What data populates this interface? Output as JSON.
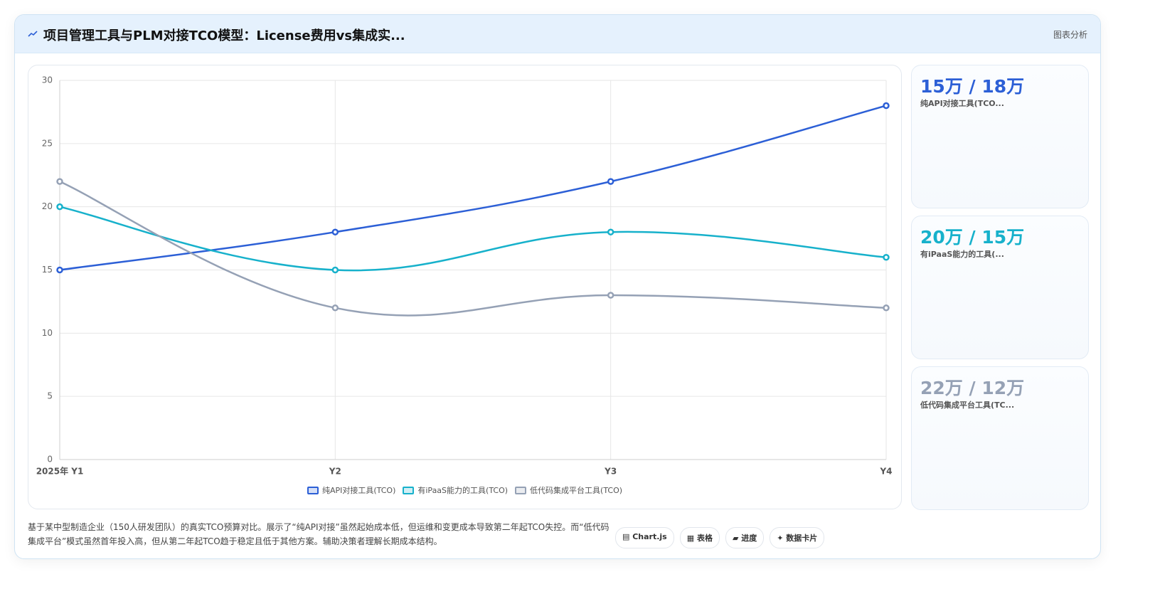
{
  "header": {
    "title": "项目管理工具与PLM对接TCO模型：License费用vs集成实...",
    "tag": "图表分析"
  },
  "chart_data": {
    "type": "line",
    "categories": [
      "2025年 Y1",
      "Y2",
      "Y3",
      "Y4"
    ],
    "series": [
      {
        "name": "纯API对接工具(TCO)",
        "color": "#2c5fd6",
        "values": [
          15,
          18,
          22,
          28
        ]
      },
      {
        "name": "有iPaaS能力的工具(TCO)",
        "color": "#17b1cb",
        "values": [
          20,
          15,
          18,
          16
        ]
      },
      {
        "name": "低代码集成平台工具(TCO)",
        "color": "#95a1b5",
        "values": [
          22,
          12,
          13,
          12
        ]
      }
    ],
    "ylim": [
      0,
      30
    ],
    "yticks": [
      0,
      5,
      10,
      15,
      20,
      25,
      30
    ],
    "grid": true,
    "smooth": true,
    "legend": "bottom"
  },
  "cards": [
    {
      "value": "15万 / 18万",
      "label": "纯API对接工具(TCO...",
      "color": "#2c5fd6"
    },
    {
      "value": "20万 / 15万",
      "label": "有iPaaS能力的工具(...",
      "color": "#17b1cb"
    },
    {
      "value": "22万 / 12万",
      "label": "低代码集成平台工具(TC...",
      "color": "#95a1b5"
    }
  ],
  "description": "基于某中型制造企业（150人研发团队）的真实TCO预算对比。展示了“纯API对接”虽然起始成本低，但运维和变更成本导致第二年起TCO失控。而“低代码集成平台”模式虽然首年投入高，但从第二年起TCO趋于稳定且低于其他方案。辅助决策者理解长期成本结构。",
  "buttons": [
    "▤ Chart.js",
    "▦ 表格",
    "▰ 进度",
    "✦ 数据卡片"
  ]
}
